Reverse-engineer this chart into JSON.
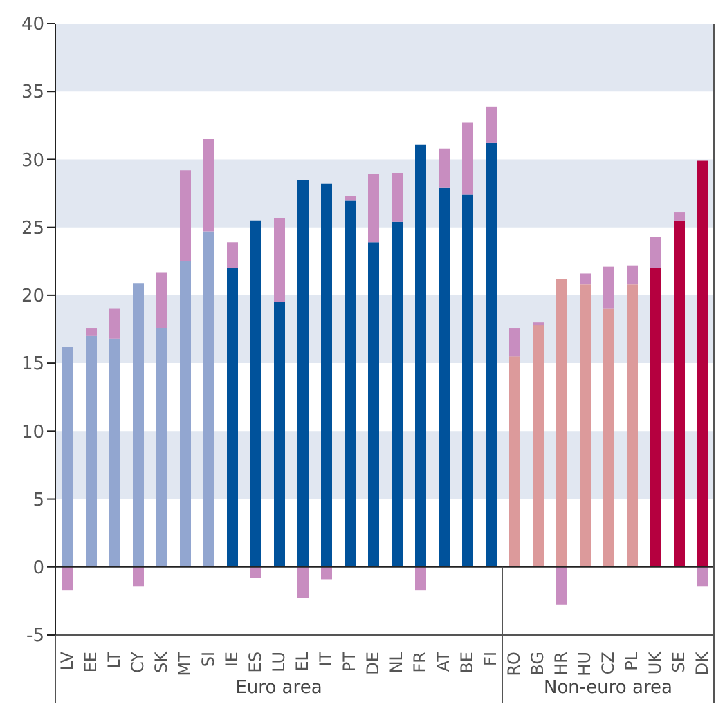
{
  "chart_data": {
    "type": "bar",
    "stacked": true,
    "categories": [
      "LV",
      "EE",
      "LT",
      "CY",
      "SK",
      "MT",
      "SI",
      "IE",
      "ES",
      "LU",
      "EL",
      "IT",
      "PT",
      "DE",
      "NL",
      "FR",
      "AT",
      "BE",
      "FI",
      "RO",
      "BG",
      "HR",
      "HU",
      "CZ",
      "PL",
      "UK",
      "SE",
      "DK"
    ],
    "series": [
      {
        "colors": [
          "#92a6d0",
          "#92a6d0",
          "#92a6d0",
          "#92a6d0",
          "#92a6d0",
          "#92a6d0",
          "#92a6d0",
          "#00529b",
          "#00529b",
          "#00529b",
          "#00529b",
          "#00529b",
          "#00529b",
          "#00529b",
          "#00529b",
          "#00529b",
          "#00529b",
          "#00529b",
          "#00529b",
          "#dc9a9b",
          "#dc9a9b",
          "#dc9a9b",
          "#dc9a9b",
          "#dc9a9b",
          "#dc9a9b",
          "#b5003f",
          "#b5003f",
          "#b5003f"
        ],
        "values": [
          16.2,
          17,
          16.8,
          20.9,
          17.6,
          22.5,
          24.7,
          22,
          25.5,
          19.5,
          28.5,
          28.2,
          27,
          23.9,
          25.4,
          31.1,
          27.9,
          27.4,
          31.2,
          15.5,
          17.8,
          21.2,
          20.8,
          19,
          20.8,
          22,
          25.5,
          29.9
        ]
      },
      {
        "color": "#c88dc0",
        "values": [
          -1.7,
          0.6,
          2.2,
          -1.4,
          4.1,
          6.7,
          6.8,
          1.9,
          -0.8,
          6.2,
          -2.3,
          -0.9,
          0.3,
          5,
          3.6,
          -1.7,
          2.9,
          5.3,
          2.7,
          2.1,
          0.2,
          -2.8,
          0.8,
          3.1,
          1.4,
          2.3,
          0.6,
          -1.4
        ]
      }
    ],
    "ylim": [
      -5,
      40
    ],
    "yticks": [
      -5,
      0,
      5,
      10,
      15,
      20,
      25,
      30,
      35,
      40
    ],
    "bands": [
      {
        "axis": "y",
        "from": 5,
        "to": 10,
        "color": "#e1e7f1"
      },
      {
        "axis": "y",
        "from": 15,
        "to": 20,
        "color": "#e1e7f1"
      },
      {
        "axis": "y",
        "from": 25,
        "to": 30,
        "color": "#e1e7f1"
      },
      {
        "axis": "y",
        "from": 35,
        "to": 40,
        "color": "#e1e7f1"
      }
    ],
    "ref_lines": [
      {
        "axis": "y",
        "value": 0,
        "color": "#222222"
      }
    ],
    "annotations": [
      "Euro area",
      "Non-euro area"
    ],
    "grid": false,
    "legend": false
  }
}
